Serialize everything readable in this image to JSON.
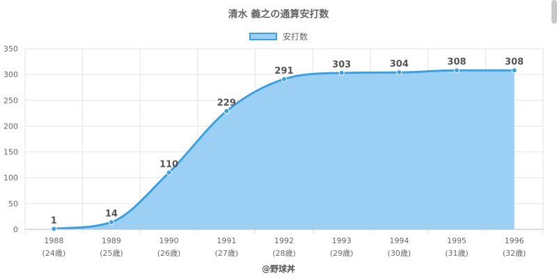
{
  "chart_data": {
    "type": "area",
    "title": "清水 義之の通算安打数",
    "legend": {
      "label": "安打数",
      "placement": "top"
    },
    "categories": [
      "1988",
      "1989",
      "1990",
      "1991",
      "1992",
      "1993",
      "1994",
      "1995",
      "1996"
    ],
    "ages": [
      "(24歳)",
      "(25歳)",
      "(26歳)",
      "(27歳)",
      "(28歳)",
      "(29歳)",
      "(30歳)",
      "(31歳)",
      "(32歳)"
    ],
    "values": [
      1,
      14,
      110,
      229,
      291,
      303,
      304,
      308,
      308
    ],
    "y_ticks": [
      "0",
      "50",
      "100",
      "150",
      "200",
      "250",
      "300",
      "350"
    ],
    "ylim": [
      0,
      350
    ],
    "grid": true,
    "colors": {
      "line": "#3b9fe4",
      "fill": "#9ccff4"
    }
  },
  "footer": {
    "credit": "@野球丼"
  }
}
